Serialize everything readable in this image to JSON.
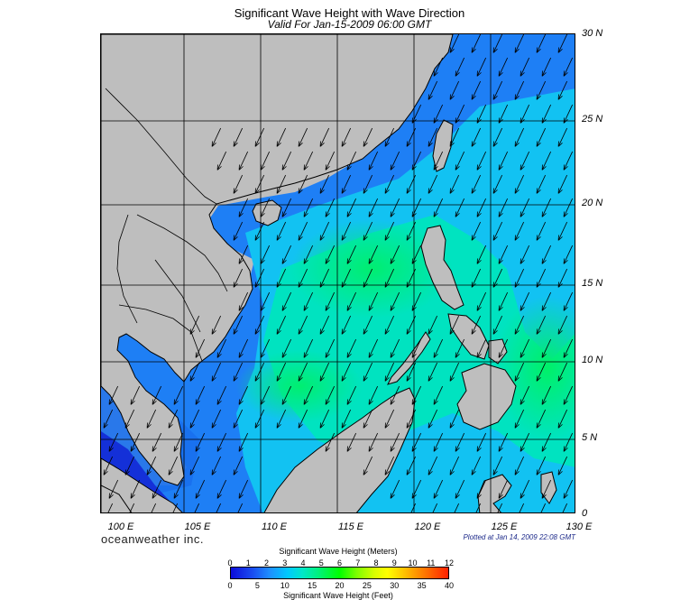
{
  "header": {
    "title": "Significant Wave Height with Wave Direction",
    "subtitle": "Valid For Jan-15-2009 06:00 GMT"
  },
  "map": {
    "lat_labels": [
      "30 N",
      "25 N",
      "20 N",
      "15 N",
      "10 N",
      "5 N",
      "0"
    ],
    "lon_labels": [
      "100 E",
      "105 E",
      "110 E",
      "115 E",
      "120 E",
      "125 E",
      "130 E"
    ],
    "wave_direction_deg": 205,
    "colors": {
      "land": "#bebebe",
      "coast": "#000000",
      "grid": "#000000"
    }
  },
  "footer": {
    "brand": "oceanweather inc.",
    "plotted": "Plotted at Jan 14, 2009 22:08 GMT"
  },
  "legend": {
    "meters_title": "Significant Wave Height (Meters)",
    "meters_ticks": [
      "0",
      "1",
      "2",
      "3",
      "4",
      "5",
      "6",
      "7",
      "8",
      "9",
      "10",
      "11",
      "12"
    ],
    "feet_ticks": [
      "0",
      "5",
      "10",
      "15",
      "20",
      "25",
      "30",
      "35",
      "40"
    ],
    "feet_title": "Significant Wave Height (Feet)"
  }
}
